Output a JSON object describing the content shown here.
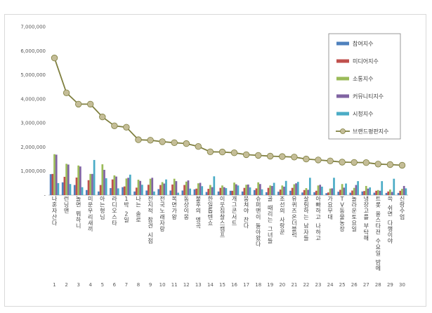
{
  "chart_data": {
    "type": "bar",
    "ylim": [
      0,
      7000000
    ],
    "yticks": [
      0,
      1000000,
      2000000,
      3000000,
      4000000,
      5000000,
      6000000,
      7000000
    ],
    "ytick_labels": [
      "-",
      "1,000,000",
      "2,000,000",
      "3,000,000",
      "4,000,000",
      "5,000,000",
      "6,000,000",
      "7,000,000"
    ],
    "categories": [
      "나혼자산다",
      "런닝맨",
      "놀면 뭐하니",
      "미운우리새끼",
      "아는형님",
      "라디오스타",
      "1박 2일",
      "나는 솔로",
      "전지적 참견 시점",
      "전국노래자랑",
      "복면가왕",
      "동상이몽",
      "불후의 명곡",
      "한일톱텐쇼",
      "이웃집찰스캠프",
      "개그콘서트",
      "뭉쳐야 찬다",
      "슈퍼맨이 돌아왔다",
      "골 때리는 그녀들",
      "조선의 사랑꾼",
      "유퀴즈온더블럭",
      "살림하는 남자들",
      "아빠하고 나하고",
      "가요무대",
      "TV동물농장",
      "놀라운토요일",
      "냉장고를 부탁해",
      "트롯 올스타전 수요일 밤에",
      "쓱 쉬면 다행이야",
      "신랑수업"
    ],
    "ranks": [
      "1",
      "2",
      "3",
      "4",
      "5",
      "6",
      "7",
      "8",
      "9",
      "10",
      "11",
      "12",
      "13",
      "14",
      "15",
      "16",
      "17",
      "18",
      "19",
      "20",
      "21",
      "22",
      "23",
      "24",
      "25",
      "26",
      "27",
      "28",
      "29",
      "30"
    ],
    "series": [
      {
        "name": "참여지수",
        "color": "#4f81bd",
        "values": [
          870000,
          530000,
          420000,
          210000,
          150000,
          290000,
          330000,
          150000,
          190000,
          250000,
          190000,
          190000,
          240000,
          130000,
          150000,
          180000,
          150000,
          210000,
          120000,
          140000,
          180000,
          110000,
          120000,
          80000,
          140000,
          100000,
          150000,
          100000,
          90000,
          90000
        ]
      },
      {
        "name": "미디어지수",
        "color": "#c0504d",
        "values": [
          880000,
          760000,
          730000,
          620000,
          420000,
          650000,
          360000,
          310000,
          430000,
          420000,
          440000,
          420000,
          270000,
          260000,
          300000,
          180000,
          300000,
          280000,
          300000,
          230000,
          300000,
          210000,
          180000,
          110000,
          220000,
          190000,
          170000,
          180000,
          150000,
          180000
        ]
      },
      {
        "name": "소통지수",
        "color": "#9bbb59",
        "values": [
          1700000,
          1300000,
          1230000,
          880000,
          1280000,
          820000,
          690000,
          640000,
          680000,
          540000,
          680000,
          560000,
          490000,
          420000,
          400000,
          520000,
          430000,
          530000,
          400000,
          400000,
          450000,
          290000,
          400000,
          270000,
          460000,
          300000,
          380000,
          210000,
          230000,
          260000
        ]
      },
      {
        "name": "커뮤니티지수",
        "color": "#8064a2",
        "values": [
          1680000,
          1270000,
          1190000,
          880000,
          1050000,
          770000,
          720000,
          590000,
          720000,
          480000,
          580000,
          610000,
          510000,
          330000,
          330000,
          450000,
          440000,
          460000,
          380000,
          350000,
          490000,
          220000,
          430000,
          280000,
          310000,
          420000,
          270000,
          180000,
          130000,
          380000
        ]
      },
      {
        "name": "시청지수",
        "color": "#4bacc6",
        "values": [
          500000,
          460000,
          330000,
          1460000,
          700000,
          280000,
          850000,
          430000,
          150000,
          650000,
          100000,
          270000,
          370000,
          780000,
          290000,
          400000,
          320000,
          240000,
          510000,
          590000,
          550000,
          720000,
          350000,
          720000,
          480000,
          580000,
          320000,
          580000,
          680000,
          280000
        ]
      },
      {
        "name": "브랜드평판지수",
        "color": "#7f7f3f",
        "type": "line",
        "values": [
          5700000,
          4250000,
          3780000,
          3780000,
          3250000,
          2880000,
          2820000,
          2300000,
          2280000,
          2220000,
          2180000,
          2140000,
          2020000,
          1800000,
          1790000,
          1760000,
          1680000,
          1650000,
          1620000,
          1600000,
          1580000,
          1500000,
          1460000,
          1420000,
          1370000,
          1360000,
          1350000,
          1290000,
          1270000,
          1240000
        ]
      }
    ]
  }
}
